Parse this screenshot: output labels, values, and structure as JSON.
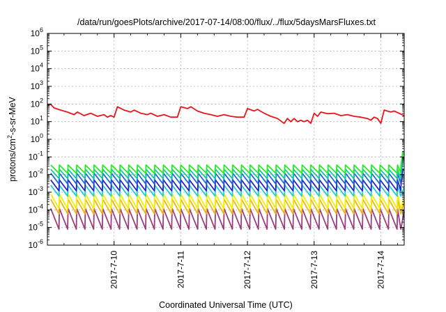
{
  "chart_data": {
    "type": "line",
    "title": "/data/run/goesPlots/archive/2017-07-14/08:00/flux/../flux/5daysMarsFluxes.txt",
    "xlabel": "Coordinated Universal Time (UTC)",
    "ylabel": {
      "pre": "protons/cm",
      "sup": "2",
      "post": "-s-sr-MeV"
    },
    "yscale": "log",
    "ylim_exp": [
      -6,
      6
    ],
    "y_ticks": [
      {
        "base": "10",
        "exp": "6"
      },
      {
        "base": "10",
        "exp": "5"
      },
      {
        "base": "10",
        "exp": "4"
      },
      {
        "base": "10",
        "exp": "3"
      },
      {
        "base": "10",
        "exp": "2"
      },
      {
        "base": "10",
        "exp": "1"
      },
      {
        "base": "10",
        "exp": "0"
      },
      {
        "base": "10",
        "exp": "-1"
      },
      {
        "base": "10",
        "exp": "-2"
      },
      {
        "base": "10",
        "exp": "-3"
      },
      {
        "base": "10",
        "exp": "-4"
      },
      {
        "base": "10",
        "exp": "-5"
      },
      {
        "base": "10",
        "exp": "-6"
      }
    ],
    "xlim_days": [
      9.0,
      14.35
    ],
    "x_ticks": [
      {
        "label": "2017-7-10",
        "day": 10
      },
      {
        "label": "2017-7-11",
        "day": 11
      },
      {
        "label": "2017-7-12",
        "day": 12
      },
      {
        "label": "2017-7-13",
        "day": 13
      },
      {
        "label": "2017-7-14",
        "day": 14
      }
    ],
    "grid": true,
    "series": [
      {
        "color": "#e8141c",
        "points": [
          [
            9.0,
            80
          ],
          [
            9.05,
            95
          ],
          [
            9.1,
            60
          ],
          [
            9.2,
            45
          ],
          [
            9.3,
            35
          ],
          [
            9.4,
            25
          ],
          [
            9.45,
            35
          ],
          [
            9.55,
            22
          ],
          [
            9.65,
            30
          ],
          [
            9.75,
            20
          ],
          [
            9.85,
            25
          ],
          [
            9.9,
            18
          ],
          [
            9.95,
            22
          ],
          [
            10.0,
            18
          ],
          [
            10.05,
            70
          ],
          [
            10.15,
            45
          ],
          [
            10.25,
            35
          ],
          [
            10.3,
            45
          ],
          [
            10.4,
            30
          ],
          [
            10.5,
            25
          ],
          [
            10.55,
            30
          ],
          [
            10.65,
            20
          ],
          [
            10.75,
            25
          ],
          [
            10.85,
            18
          ],
          [
            10.95,
            18
          ],
          [
            11.0,
            70
          ],
          [
            11.1,
            55
          ],
          [
            11.15,
            70
          ],
          [
            11.25,
            40
          ],
          [
            11.35,
            30
          ],
          [
            11.45,
            25
          ],
          [
            11.55,
            20
          ],
          [
            11.65,
            25
          ],
          [
            11.75,
            20
          ],
          [
            11.85,
            18
          ],
          [
            11.95,
            18
          ],
          [
            12.0,
            55
          ],
          [
            12.1,
            40
          ],
          [
            12.15,
            50
          ],
          [
            12.25,
            30
          ],
          [
            12.35,
            20
          ],
          [
            12.45,
            15
          ],
          [
            12.55,
            8
          ],
          [
            12.6,
            15
          ],
          [
            12.65,
            10
          ],
          [
            12.7,
            15
          ],
          [
            12.75,
            10
          ],
          [
            12.8,
            12
          ],
          [
            12.85,
            10
          ],
          [
            12.9,
            12
          ],
          [
            12.95,
            8
          ],
          [
            13.0,
            30
          ],
          [
            13.05,
            20
          ],
          [
            13.1,
            35
          ],
          [
            13.2,
            28
          ],
          [
            13.3,
            30
          ],
          [
            13.4,
            22
          ],
          [
            13.5,
            25
          ],
          [
            13.6,
            20
          ],
          [
            13.7,
            18
          ],
          [
            13.8,
            15
          ],
          [
            13.85,
            12
          ],
          [
            13.9,
            18
          ],
          [
            13.95,
            15
          ],
          [
            14.0,
            8
          ],
          [
            14.05,
            45
          ],
          [
            14.15,
            35
          ],
          [
            14.2,
            40
          ],
          [
            14.35,
            22
          ]
        ]
      },
      {
        "color": "#22ee22",
        "teeth": {
          "start": 9.05,
          "end": 14.3,
          "period": 0.13,
          "peak": 0.035,
          "trough": 0.012
        },
        "end_points": [
          [
            14.3,
            0.03
          ],
          [
            14.33,
            0.2
          ],
          [
            14.35,
            0.18
          ]
        ]
      },
      {
        "color": "#14c8a0",
        "teeth": {
          "start": 9.05,
          "end": 14.3,
          "period": 0.13,
          "peak": 0.02,
          "trough": 0.006
        },
        "end_points": [
          [
            14.3,
            0.01
          ],
          [
            14.33,
            0.15
          ],
          [
            14.35,
            0.14
          ]
        ]
      },
      {
        "color": "#1c6ad8",
        "teeth": {
          "start": 9.05,
          "end": 14.3,
          "period": 0.13,
          "peak": 0.012,
          "trough": 0.003
        },
        "end_points": [
          [
            14.3,
            0.005
          ],
          [
            14.33,
            0.09
          ],
          [
            14.35,
            0.08
          ]
        ]
      },
      {
        "color": "#2424c8",
        "teeth": {
          "start": 9.05,
          "end": 14.3,
          "period": 0.13,
          "peak": 0.005,
          "trough": 0.0012
        },
        "end_points": [
          [
            14.3,
            0.002
          ],
          [
            14.33,
            0.02
          ],
          [
            14.35,
            0.018
          ]
        ]
      },
      {
        "color": "#20d0d0",
        "teeth": {
          "start": 9.05,
          "end": 14.3,
          "period": 0.13,
          "peak": 0.0025,
          "trough": 0.0006
        },
        "end_points": [
          [
            14.35,
            0.002
          ]
        ]
      },
      {
        "color": "#f0f000",
        "teeth": {
          "start": 9.05,
          "end": 14.3,
          "period": 0.13,
          "peak": 0.0008,
          "trough": 0.00012
        },
        "end_points": [
          [
            14.35,
            0.0005
          ]
        ]
      },
      {
        "color": "#f0b418",
        "teeth": {
          "start": 9.05,
          "end": 14.3,
          "period": 0.13,
          "peak": 0.0004,
          "trough": 6e-05
        },
        "end_points": [
          [
            14.35,
            0.0003
          ]
        ]
      },
      {
        "color": "#9c3c7c",
        "teeth": {
          "start": 9.05,
          "end": 14.3,
          "period": 0.13,
          "peak": 0.00012,
          "trough": 8e-06
        },
        "end_points": [
          [
            14.35,
            8e-05
          ]
        ]
      }
    ]
  }
}
